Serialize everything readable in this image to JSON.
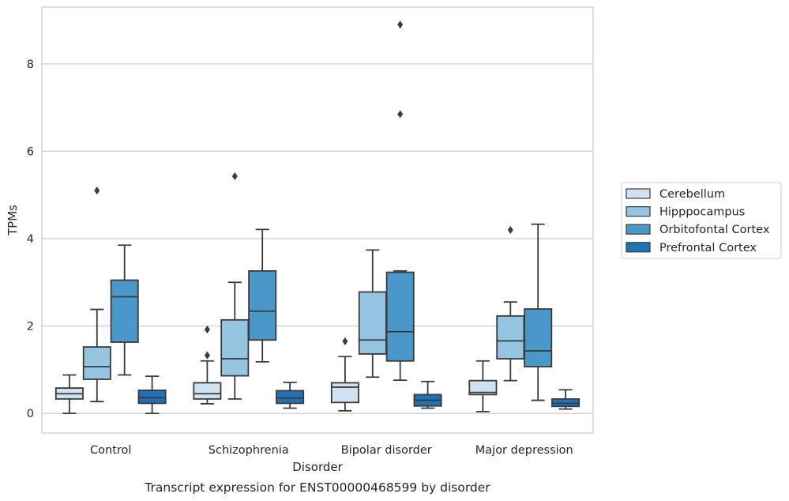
{
  "chart_data": {
    "type": "box",
    "xlabel": "Disorder",
    "ylabel": "TPMs",
    "caption": "Transcript expression for ENST00000468599 by disorder",
    "categories": [
      "Control",
      "Schizophrenia",
      "Bipolar disorder",
      "Major depression"
    ],
    "yticks": [
      0,
      2,
      4,
      6,
      8
    ],
    "ylim": [
      -0.45,
      9.3
    ],
    "grid": "horizontal",
    "legend_position": "right",
    "series": [
      {
        "name": "Cerebellum",
        "color": "#d0e1f2",
        "boxes": [
          {
            "whisker_low": 0.0,
            "q1": 0.33,
            "median": 0.45,
            "q3": 0.58,
            "whisker_high": 0.88,
            "outliers": []
          },
          {
            "whisker_low": 0.22,
            "q1": 0.33,
            "median": 0.45,
            "q3": 0.7,
            "whisker_high": 1.2,
            "outliers": [
              1.33,
              1.92
            ]
          },
          {
            "whisker_low": 0.06,
            "q1": 0.25,
            "median": 0.6,
            "q3": 0.7,
            "whisker_high": 1.3,
            "outliers": [
              1.65
            ]
          },
          {
            "whisker_low": 0.04,
            "q1": 0.43,
            "median": 0.48,
            "q3": 0.75,
            "whisker_high": 1.2,
            "outliers": []
          }
        ]
      },
      {
        "name": "Hipppocampus",
        "color": "#94c4df",
        "boxes": [
          {
            "whisker_low": 0.27,
            "q1": 0.78,
            "median": 1.07,
            "q3": 1.52,
            "whisker_high": 2.38,
            "outliers": [
              5.1
            ]
          },
          {
            "whisker_low": 0.33,
            "q1": 0.86,
            "median": 1.25,
            "q3": 2.14,
            "whisker_high": 3.0,
            "outliers": [
              5.43
            ]
          },
          {
            "whisker_low": 0.83,
            "q1": 1.36,
            "median": 1.68,
            "q3": 2.78,
            "whisker_high": 3.74,
            "outliers": []
          },
          {
            "whisker_low": 0.75,
            "q1": 1.25,
            "median": 1.66,
            "q3": 2.23,
            "whisker_high": 2.55,
            "outliers": [
              4.2
            ]
          }
        ]
      },
      {
        "name": "Orbitofontal Cortex",
        "color": "#4a98c9",
        "boxes": [
          {
            "whisker_low": 0.88,
            "q1": 1.63,
            "median": 2.67,
            "q3": 3.05,
            "whisker_high": 3.85,
            "outliers": []
          },
          {
            "whisker_low": 1.18,
            "q1": 1.68,
            "median": 2.34,
            "q3": 3.26,
            "whisker_high": 4.21,
            "outliers": []
          },
          {
            "whisker_low": 0.76,
            "q1": 1.2,
            "median": 1.87,
            "q3": 3.23,
            "whisker_high": 3.26,
            "outliers": [
              6.85,
              8.9
            ]
          },
          {
            "whisker_low": 0.3,
            "q1": 1.07,
            "median": 1.43,
            "q3": 2.39,
            "whisker_high": 4.33,
            "outliers": []
          }
        ]
      },
      {
        "name": "Prefrontal Cortex",
        "color": "#2171b5",
        "boxes": [
          {
            "whisker_low": 0.0,
            "q1": 0.23,
            "median": 0.36,
            "q3": 0.53,
            "whisker_high": 0.85,
            "outliers": []
          },
          {
            "whisker_low": 0.12,
            "q1": 0.23,
            "median": 0.35,
            "q3": 0.52,
            "whisker_high": 0.71,
            "outliers": []
          },
          {
            "whisker_low": 0.12,
            "q1": 0.17,
            "median": 0.3,
            "q3": 0.43,
            "whisker_high": 0.73,
            "outliers": []
          },
          {
            "whisker_low": 0.1,
            "q1": 0.16,
            "median": 0.23,
            "q3": 0.33,
            "whisker_high": 0.54,
            "outliers": []
          }
        ]
      }
    ]
  }
}
